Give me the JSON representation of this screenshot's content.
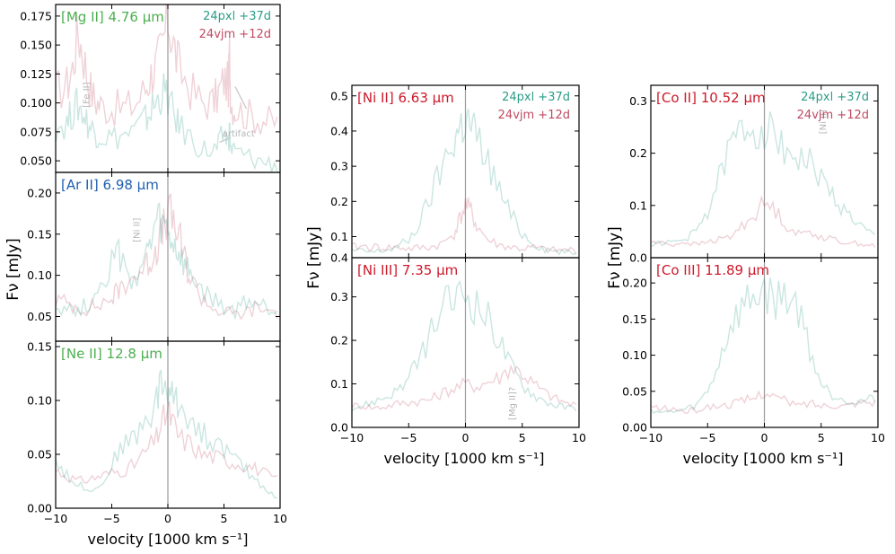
{
  "figure": {
    "xlabel": "velocity [1000 km s⁻¹]",
    "ylabel": "Fν [mJy]"
  },
  "legend": {
    "a": "24pxl +37d",
    "b": "24vjm +12d"
  },
  "colors": {
    "a": "#2b9c87",
    "b": "#bf4a62",
    "axis_zero": "#9a9a9a",
    "annot": "#b5b5b5"
  },
  "chart_data": [
    {
      "type": "line",
      "title": "[Mg II] 4.76 μm",
      "title_color": "#4caf50",
      "legend": true,
      "xlim": [
        -10,
        10
      ],
      "ylim": [
        0.04,
        0.185
      ],
      "yticks": [
        "0.050",
        "0.075",
        "0.100",
        "0.125",
        "0.150",
        "0.175"
      ],
      "ytick_values": [
        0.05,
        0.075,
        0.1,
        0.125,
        0.15,
        0.175
      ],
      "xticks": [],
      "annotations": [
        {
          "text": "[Fe II]",
          "x": -7.0,
          "y": 0.107,
          "rotate": -90
        },
        {
          "text": "artifact",
          "x": 6.3,
          "y": 0.071,
          "rotate": 0
        }
      ],
      "arrows": [
        {
          "from": [
            7.0,
            0.095
          ],
          "to": [
            6.0,
            0.114
          ]
        },
        {
          "from": [
            5.6,
            0.07
          ],
          "to": [
            4.6,
            0.066
          ]
        }
      ],
      "x": [
        -10,
        -9,
        -8.5,
        -8,
        -7.5,
        -7,
        -6.5,
        -6,
        -5,
        -4,
        -3,
        -2,
        -1.5,
        -1,
        -0.5,
        0,
        0.5,
        1,
        2,
        3,
        4,
        4.5,
        5,
        5.4,
        5.5,
        5.6,
        6,
        7,
        8,
        9,
        10
      ],
      "series": [
        {
          "name": "24vjm +12d",
          "color": "#bf4a62",
          "values": [
            0.11,
            0.115,
            0.13,
            0.162,
            0.14,
            0.115,
            0.102,
            0.098,
            0.095,
            0.096,
            0.098,
            0.112,
            0.125,
            0.133,
            0.148,
            0.174,
            0.15,
            0.13,
            0.112,
            0.101,
            0.1,
            0.108,
            0.12,
            0.115,
            0.143,
            0.1,
            0.095,
            0.09,
            0.087,
            0.084,
            0.082
          ]
        },
        {
          "name": "24pxl +37d",
          "color": "#2b9c87",
          "values": [
            0.08,
            0.082,
            0.093,
            0.098,
            0.09,
            0.08,
            0.075,
            0.072,
            0.07,
            0.072,
            0.075,
            0.085,
            0.094,
            0.1,
            0.11,
            0.105,
            0.09,
            0.08,
            0.07,
            0.06,
            0.058,
            0.062,
            0.075,
            0.065,
            0.078,
            0.06,
            0.058,
            0.054,
            0.05,
            0.048,
            0.046
          ]
        }
      ]
    },
    {
      "type": "line",
      "title": "[Ar II] 6.98 μm",
      "title_color": "#1f5fb0",
      "legend": false,
      "xlim": [
        -10,
        10
      ],
      "ylim": [
        0.02,
        0.225
      ],
      "yticks": [
        "0.05",
        "0.10",
        "0.15",
        "0.20"
      ],
      "ytick_values": [
        0.05,
        0.1,
        0.15,
        0.2
      ],
      "xticks": [],
      "annotations": [
        {
          "text": "[Ni II]",
          "x": -2.5,
          "y": 0.155,
          "rotate": -90
        }
      ],
      "arrows": [],
      "x": [
        -10,
        -9,
        -8,
        -7,
        -6,
        -5,
        -4.5,
        -4,
        -3,
        -2,
        -1.5,
        -1,
        -0.5,
        0,
        0.5,
        1,
        1.5,
        2,
        3,
        4,
        5,
        6,
        7,
        8,
        9,
        10
      ],
      "series": [
        {
          "name": "24vjm +12d",
          "color": "#bf4a62",
          "values": [
            0.07,
            0.066,
            0.062,
            0.06,
            0.065,
            0.072,
            0.08,
            0.09,
            0.1,
            0.11,
            0.12,
            0.135,
            0.15,
            0.175,
            0.165,
            0.145,
            0.12,
            0.095,
            0.075,
            0.06,
            0.055,
            0.052,
            0.055,
            0.06,
            0.057,
            0.055
          ]
        },
        {
          "name": "24pxl +37d",
          "color": "#2b9c87",
          "values": [
            0.065,
            0.06,
            0.058,
            0.066,
            0.09,
            0.115,
            0.13,
            0.108,
            0.095,
            0.12,
            0.135,
            0.165,
            0.158,
            0.15,
            0.135,
            0.125,
            0.108,
            0.102,
            0.08,
            0.07,
            0.06,
            0.055,
            0.07,
            0.065,
            0.06,
            0.055
          ]
        }
      ]
    },
    {
      "type": "line",
      "title": "[Ne II] 12.8 μm",
      "title_color": "#4caf50",
      "legend": false,
      "xlim": [
        -10,
        10
      ],
      "ylim": [
        0.0,
        0.155
      ],
      "yticks": [
        "0.00",
        "0.05",
        "0.10",
        "0.15"
      ],
      "ytick_values": [
        0,
        0.05,
        0.1,
        0.15
      ],
      "xticks": [
        "−10",
        "−5",
        "0",
        "5",
        "10"
      ],
      "xtick_values": [
        -10,
        -5,
        0,
        5,
        10
      ],
      "annotations": [],
      "arrows": [],
      "x": [
        -10,
        -9,
        -8,
        -7,
        -6,
        -5,
        -4,
        -3,
        -2,
        -1,
        -0.5,
        0,
        0.5,
        1,
        2,
        3,
        4,
        5,
        6,
        7,
        8,
        9,
        10
      ],
      "series": [
        {
          "name": "24vjm +12d",
          "color": "#bf4a62",
          "values": [
            0.035,
            0.03,
            0.025,
            0.027,
            0.03,
            0.033,
            0.035,
            0.04,
            0.052,
            0.065,
            0.08,
            0.09,
            0.078,
            0.065,
            0.06,
            0.05,
            0.048,
            0.045,
            0.042,
            0.04,
            0.036,
            0.03,
            0.025
          ]
        },
        {
          "name": "24pxl +37d",
          "color": "#2b9c87",
          "values": [
            0.045,
            0.03,
            0.022,
            0.018,
            0.02,
            0.04,
            0.06,
            0.065,
            0.08,
            0.1,
            0.12,
            0.108,
            0.102,
            0.095,
            0.085,
            0.07,
            0.062,
            0.055,
            0.045,
            0.035,
            0.025,
            0.015,
            0.008
          ]
        }
      ]
    },
    {
      "type": "line",
      "title": "[Ni II] 6.63 μm",
      "title_color": "#cc1a2a",
      "legend": true,
      "xlim": [
        -10,
        10
      ],
      "ylim": [
        0.04,
        0.53
      ],
      "yticks": [
        "0.1",
        "0.2",
        "0.3",
        "0.4",
        "0.5"
      ],
      "ytick_values": [
        0.1,
        0.2,
        0.3,
        0.4,
        0.5
      ],
      "bottom_tick_label": "0.4",
      "xticks": [],
      "annotations": [],
      "arrows": [],
      "x": [
        -10,
        -9,
        -8,
        -7,
        -6,
        -5,
        -4,
        -3,
        -2,
        -1,
        -0.5,
        0,
        0.5,
        1,
        2,
        3,
        4,
        5,
        6,
        7,
        8,
        9,
        10
      ],
      "series": [
        {
          "name": "24pxl +37d",
          "color": "#2b9c87",
          "values": [
            0.06,
            0.058,
            0.056,
            0.062,
            0.07,
            0.09,
            0.14,
            0.22,
            0.3,
            0.38,
            0.41,
            0.43,
            0.415,
            0.38,
            0.31,
            0.23,
            0.16,
            0.11,
            0.08,
            0.065,
            0.058,
            0.055,
            0.052
          ]
        },
        {
          "name": "24vjm +12d",
          "color": "#bf4a62",
          "values": [
            0.07,
            0.072,
            0.07,
            0.068,
            0.07,
            0.065,
            0.068,
            0.07,
            0.08,
            0.11,
            0.15,
            0.19,
            0.17,
            0.13,
            0.09,
            0.075,
            0.07,
            0.065,
            0.068,
            0.063,
            0.06,
            0.062,
            0.06
          ]
        }
      ]
    },
    {
      "type": "line",
      "title": "[Ni III] 7.35 μm",
      "title_color": "#cc1a2a",
      "legend": false,
      "xlim": [
        -10,
        10
      ],
      "ylim": [
        0.0,
        0.39
      ],
      "yticks": [
        "0.0",
        "0.1",
        "0.2",
        "0.3"
      ],
      "ytick_values": [
        0,
        0.1,
        0.2,
        0.3
      ],
      "xticks": [
        "−10",
        "−5",
        "0",
        "5",
        "10"
      ],
      "xtick_values": [
        -10,
        -5,
        0,
        5,
        10
      ],
      "annotations": [
        {
          "text": "[Mg II]?",
          "x": 4.4,
          "y": 0.055,
          "rotate": -90
        }
      ],
      "arrows": [],
      "x": [
        -10,
        -9,
        -8,
        -7,
        -6,
        -5,
        -4,
        -3,
        -2,
        -1,
        0,
        1,
        2,
        3,
        4,
        5,
        6,
        7,
        8,
        9,
        10
      ],
      "series": [
        {
          "name": "24pxl +37d",
          "color": "#2b9c87",
          "values": [
            0.045,
            0.05,
            0.06,
            0.07,
            0.085,
            0.11,
            0.16,
            0.22,
            0.27,
            0.295,
            0.31,
            0.28,
            0.25,
            0.2,
            0.14,
            0.1,
            0.075,
            0.06,
            0.05,
            0.045,
            0.045
          ]
        },
        {
          "name": "24vjm +12d",
          "color": "#bf4a62",
          "values": [
            0.05,
            0.05,
            0.045,
            0.048,
            0.055,
            0.058,
            0.06,
            0.065,
            0.08,
            0.09,
            0.1,
            0.095,
            0.105,
            0.115,
            0.14,
            0.125,
            0.1,
            0.08,
            0.065,
            0.055,
            0.05
          ]
        }
      ]
    },
    {
      "type": "line",
      "title": "[Co II] 10.52 μm",
      "title_color": "#cc1a2a",
      "legend": true,
      "xlim": [
        -10,
        10
      ],
      "ylim": [
        0.0,
        0.33
      ],
      "yticks": [
        "0.0",
        "0.1",
        "0.2",
        "0.3"
      ],
      "ytick_values": [
        0,
        0.1,
        0.2,
        0.3
      ],
      "xticks": [],
      "annotations": [
        {
          "text": "[Ni II]",
          "x": 5.4,
          "y": 0.26,
          "rotate": -90
        }
      ],
      "arrows": [],
      "x": [
        -10,
        -9,
        -8,
        -7,
        -6,
        -5,
        -4,
        -3,
        -2,
        -1,
        0,
        1,
        2,
        3,
        4,
        5,
        6,
        7,
        8,
        9,
        10
      ],
      "series": [
        {
          "name": "24pxl +37d",
          "color": "#2b9c87",
          "values": [
            0.025,
            0.028,
            0.03,
            0.035,
            0.05,
            0.09,
            0.15,
            0.21,
            0.245,
            0.25,
            0.25,
            0.23,
            0.21,
            0.19,
            0.18,
            0.15,
            0.12,
            0.09,
            0.07,
            0.05,
            0.04
          ]
        },
        {
          "name": "24vjm +12d",
          "color": "#bf4a62",
          "values": [
            0.03,
            0.028,
            0.025,
            0.03,
            0.025,
            0.03,
            0.035,
            0.04,
            0.06,
            0.08,
            0.105,
            0.09,
            0.06,
            0.045,
            0.05,
            0.04,
            0.035,
            0.03,
            0.028,
            0.025,
            0.022
          ]
        }
      ]
    },
    {
      "type": "line",
      "title": "[Co III] 11.89 μm",
      "title_color": "#cc1a2a",
      "legend": false,
      "xlim": [
        -10,
        10
      ],
      "ylim": [
        0.0,
        0.235
      ],
      "yticks": [
        "0.00",
        "0.05",
        "0.10",
        "0.15",
        "0.20"
      ],
      "ytick_values": [
        0,
        0.05,
        0.1,
        0.15,
        0.2
      ],
      "xticks": [
        "−10",
        "−5",
        "0",
        "5",
        "10"
      ],
      "xtick_values": [
        -10,
        -5,
        0,
        5,
        10
      ],
      "annotations": [],
      "arrows": [],
      "x": [
        -10,
        -9,
        -8,
        -7,
        -6,
        -5,
        -4,
        -3,
        -2,
        -1,
        0,
        1,
        2,
        3,
        4,
        5,
        6,
        7,
        8,
        9,
        10
      ],
      "series": [
        {
          "name": "24pxl +37d",
          "color": "#2b9c87",
          "values": [
            0.025,
            0.02,
            0.022,
            0.025,
            0.03,
            0.05,
            0.09,
            0.14,
            0.165,
            0.18,
            0.19,
            0.175,
            0.185,
            0.165,
            0.11,
            0.06,
            0.045,
            0.04,
            0.035,
            0.038,
            0.04
          ]
        },
        {
          "name": "24vjm +12d",
          "color": "#bf4a62",
          "values": [
            0.028,
            0.026,
            0.025,
            0.022,
            0.024,
            0.028,
            0.03,
            0.032,
            0.036,
            0.04,
            0.05,
            0.042,
            0.036,
            0.03,
            0.034,
            0.03,
            0.032,
            0.03,
            0.034,
            0.036,
            0.034
          ]
        }
      ]
    }
  ]
}
